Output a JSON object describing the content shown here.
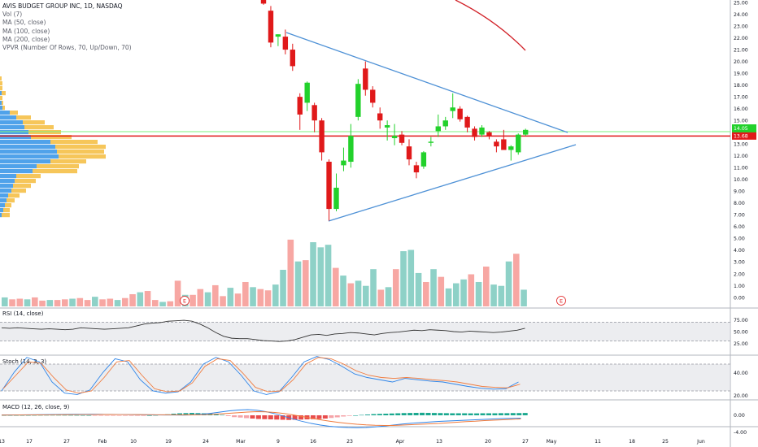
{
  "legend": {
    "title": "AVIS BUDGET GROUP INC, 1D, NASDAQ",
    "vol": "Vol (7)",
    "ma50": "MA (50, close)",
    "ma100": "MA (100, close)",
    "ma200": "MA (200, close)",
    "vpvr": "VPVR (Number Of Rows, 70, Up/Down, 70)"
  },
  "panels": {
    "rsi": "RSI (14, close)",
    "stoch": "Stoch (14, 3, 3)",
    "macd": "MACD (12, 26, close, 9)"
  },
  "colors": {
    "up": "#22d12b",
    "down": "#e0191a",
    "vol_up": "#8ed1c7",
    "vol_down": "#f7a7a3",
    "vpvr_up": "#3d98e8",
    "vpvr_down": "#f5c048",
    "trendline": "#4e91d6",
    "ma_red": "#d12027",
    "support": "#e0191a",
    "resist": "#7cf07c"
  },
  "chart_data": {
    "type": "candlestick",
    "price_axis": [
      "25.00",
      "24.00",
      "23.00",
      "22.00",
      "21.00",
      "20.00",
      "19.00",
      "18.00",
      "17.00",
      "16.00",
      "15.00",
      "14.00",
      "13.00",
      "12.00",
      "11.00",
      "10.00",
      "9.00",
      "8.00",
      "7.00",
      "6.00",
      "5.00",
      "4.00",
      "3.00",
      "2.00",
      "1.00",
      "0.00"
    ],
    "price_labels": {
      "last": "14.05",
      "current": "14.05",
      "support": "13.68"
    },
    "support_level": 13.68,
    "resistance_level": 14.05,
    "rsi_axis": [
      "75.00",
      "50.00",
      "25.00"
    ],
    "stoch_axis": [
      "40.00",
      "20.00"
    ],
    "macd_axis": [
      "0.00",
      "-4.00"
    ],
    "date_axis": [
      "13",
      "17",
      "27",
      "Feb",
      "10",
      "19",
      "24",
      "Mar",
      "9",
      "16",
      "23",
      "Apr",
      "13",
      "20",
      "27",
      "May",
      "11",
      "18",
      "25",
      "Jun"
    ],
    "earnings_marker": "E",
    "candles": [
      {
        "o": 25.3,
        "h": 25.6,
        "l": 24.8,
        "c": 24.9
      },
      {
        "o": 24.3,
        "h": 24.7,
        "l": 21.2,
        "c": 21.6
      },
      {
        "o": 22.1,
        "h": 22.3,
        "l": 21.3,
        "c": 22.3
      },
      {
        "o": 22.1,
        "h": 22.7,
        "l": 20.6,
        "c": 21.0
      },
      {
        "o": 21.0,
        "h": 21.5,
        "l": 19.2,
        "c": 19.6
      },
      {
        "o": 17.0,
        "h": 17.3,
        "l": 14.2,
        "c": 15.5
      },
      {
        "o": 16.5,
        "h": 18.3,
        "l": 15.8,
        "c": 18.2
      },
      {
        "o": 16.3,
        "h": 16.5,
        "l": 14.0,
        "c": 15.0
      },
      {
        "o": 15.0,
        "h": 15.2,
        "l": 11.6,
        "c": 12.3
      },
      {
        "o": 11.5,
        "h": 11.7,
        "l": 6.5,
        "c": 7.5
      },
      {
        "o": 7.5,
        "h": 10.5,
        "l": 7.3,
        "c": 9.3
      },
      {
        "o": 11.2,
        "h": 12.7,
        "l": 10.7,
        "c": 11.6
      },
      {
        "o": 11.5,
        "h": 14.7,
        "l": 11.0,
        "c": 13.7
      },
      {
        "o": 15.3,
        "h": 18.5,
        "l": 15.0,
        "c": 18.1
      },
      {
        "o": 19.4,
        "h": 20.0,
        "l": 17.1,
        "c": 17.6
      },
      {
        "o": 17.6,
        "h": 17.9,
        "l": 16.1,
        "c": 16.5
      },
      {
        "o": 15.6,
        "h": 16.1,
        "l": 14.3,
        "c": 15.0
      },
      {
        "o": 14.4,
        "h": 15.0,
        "l": 13.3,
        "c": 14.6
      },
      {
        "o": 13.5,
        "h": 14.7,
        "l": 12.9,
        "c": 13.7
      },
      {
        "o": 13.8,
        "h": 14.1,
        "l": 12.9,
        "c": 13.1
      },
      {
        "o": 12.8,
        "h": 13.4,
        "l": 11.2,
        "c": 11.7
      },
      {
        "o": 11.2,
        "h": 11.5,
        "l": 10.1,
        "c": 10.6
      },
      {
        "o": 11.1,
        "h": 12.4,
        "l": 10.9,
        "c": 12.3
      },
      {
        "o": 13.1,
        "h": 13.6,
        "l": 12.8,
        "c": 13.2
      },
      {
        "o": 14.1,
        "h": 15.5,
        "l": 13.6,
        "c": 14.5
      },
      {
        "o": 14.5,
        "h": 15.3,
        "l": 14.2,
        "c": 15.0
      },
      {
        "o": 15.8,
        "h": 17.3,
        "l": 15.2,
        "c": 16.1
      },
      {
        "o": 16.0,
        "h": 16.2,
        "l": 14.9,
        "c": 15.1
      },
      {
        "o": 15.3,
        "h": 15.4,
        "l": 14.0,
        "c": 14.4
      },
      {
        "o": 14.3,
        "h": 14.5,
        "l": 13.3,
        "c": 13.6
      },
      {
        "o": 13.8,
        "h": 14.6,
        "l": 13.6,
        "c": 14.4
      },
      {
        "o": 14.0,
        "h": 14.1,
        "l": 13.4,
        "c": 13.7
      },
      {
        "o": 13.2,
        "h": 13.4,
        "l": 12.3,
        "c": 12.8
      },
      {
        "o": 13.4,
        "h": 14.2,
        "l": 12.5,
        "c": 12.5
      },
      {
        "o": 12.5,
        "h": 12.9,
        "l": 11.6,
        "c": 12.8
      },
      {
        "o": 12.3,
        "h": 13.9,
        "l": 12.1,
        "c": 13.8
      },
      {
        "o": 13.8,
        "h": 14.3,
        "l": 13.7,
        "c": 14.2
      }
    ],
    "volume": [
      0.7,
      0.55,
      0.6,
      0.55,
      0.7,
      0.45,
      0.5,
      0.5,
      0.55,
      0.6,
      0.65,
      0.5,
      0.75,
      0.55,
      0.6,
      0.5,
      0.65,
      0.95,
      1.1,
      1.2,
      0.5,
      0.35,
      0.4,
      2.0,
      0.9,
      0.9,
      1.35,
      1.1,
      1.65,
      0.8,
      1.45,
      1.0,
      1.9,
      1.5,
      1.35,
      1.25,
      1.7,
      2.85,
      5.2,
      3.5,
      3.6,
      5.0,
      4.6,
      4.8,
      3.0,
      2.4,
      1.8,
      2.0,
      1.6,
      2.9,
      1.3,
      1.5,
      2.9,
      4.3,
      4.4,
      2.6,
      1.9,
      2.9,
      2.3,
      1.4,
      1.8,
      2.1,
      2.5,
      1.9,
      3.1,
      1.7,
      1.6,
      3.5,
      4.1,
      1.3
    ],
    "rsi": [
      58,
      57,
      58,
      57,
      56,
      55,
      56,
      55,
      54,
      55,
      58,
      57,
      56,
      55,
      56,
      57,
      58,
      62,
      66,
      68,
      69,
      72,
      73,
      74,
      72,
      66,
      58,
      48,
      40,
      36,
      35,
      35,
      33,
      31,
      30,
      29,
      30,
      33,
      38,
      43,
      44,
      42,
      45,
      46,
      48,
      47,
      45,
      43,
      46,
      48,
      49,
      51,
      53,
      52,
      54,
      53,
      52,
      50,
      49,
      51,
      50,
      49,
      48,
      49,
      51,
      53,
      57
    ],
    "stoch_k": [
      20,
      62,
      95,
      85,
      40,
      15,
      12,
      22,
      60,
      92,
      85,
      45,
      20,
      15,
      18,
      40,
      80,
      95,
      85,
      55,
      20,
      12,
      18,
      50,
      85,
      97,
      90,
      75,
      58,
      50,
      45,
      40,
      48,
      45,
      42,
      40,
      35,
      30,
      26,
      24,
      25,
      40
    ],
    "stoch_d": [
      25,
      55,
      85,
      82,
      50,
      22,
      15,
      20,
      50,
      85,
      88,
      55,
      25,
      18,
      20,
      38,
      75,
      92,
      88,
      60,
      28,
      18,
      20,
      45,
      80,
      95,
      92,
      80,
      65,
      55,
      50,
      48,
      50,
      48,
      45,
      43,
      40,
      35,
      30,
      28,
      27,
      35
    ],
    "macd_hist": [
      0.05,
      0.05,
      0.06,
      0.07,
      0.08,
      0.1,
      0.12,
      0.14,
      0.15,
      0.14,
      0.12,
      0.1,
      0.08,
      0.05,
      0.02,
      -0.02,
      -0.05,
      -0.08,
      -0.1,
      -0.12,
      -0.13,
      -0.1,
      -0.06,
      -0.03,
      0.0,
      0.1,
      0.3,
      0.5,
      0.8,
      1.0,
      1.1,
      1.2,
      1.1,
      1.0,
      0.9,
      0.6,
      0.2,
      -0.4,
      -0.9,
      -1.1,
      -1.4,
      -1.6,
      -1.8,
      -1.9,
      -2.0,
      -2.1,
      -2.2,
      -2.3,
      -2.2,
      -2.1,
      -2.0,
      -1.9,
      -1.8,
      -1.6,
      -1.3,
      -1.0,
      -0.6,
      -0.3,
      0.0,
      0.2,
      0.4,
      0.6,
      0.7,
      0.8,
      0.9,
      1.0,
      1.1,
      1.15,
      1.2,
      1.25,
      1.2,
      1.15,
      1.1,
      1.05,
      1.0,
      1.0,
      1.0,
      0.95,
      0.95,
      1.0,
      1.0,
      1.0,
      1.05,
      1.05,
      1.1,
      1.1,
      1.15
    ],
    "macd_line": [
      0.2,
      0.2,
      0.22,
      0.25,
      0.3,
      0.35,
      0.4,
      0.45,
      0.5,
      0.52,
      0.55,
      0.5,
      0.45,
      0.4,
      0.35,
      0.3,
      0.25,
      0.2,
      0.15,
      0.12,
      0.1,
      0.2,
      0.5,
      1.0,
      1.6,
      2.2,
      2.6,
      2.8,
      2.5,
      1.8,
      0.8,
      -0.5,
      -1.8,
      -3.0,
      -4.0,
      -4.8,
      -5.4,
      -5.8,
      -6.0,
      -6.1,
      -6.0,
      -5.7,
      -5.3,
      -4.8,
      -4.3,
      -3.9,
      -3.6,
      -3.3,
      -3.0,
      -2.8,
      -2.6,
      -2.4,
      -2.2,
      -2.0,
      -1.8,
      -1.6,
      -1.5,
      -1.4
    ],
    "signal_line": [
      0.1,
      0.12,
      0.15,
      0.18,
      0.2,
      0.23,
      0.26,
      0.3,
      0.33,
      0.36,
      0.38,
      0.4,
      0.4,
      0.39,
      0.37,
      0.35,
      0.32,
      0.28,
      0.25,
      0.22,
      0.2,
      0.2,
      0.28,
      0.45,
      0.7,
      1.0,
      1.3,
      1.6,
      1.8,
      1.7,
      1.4,
      0.9,
      0.2,
      -0.6,
      -1.4,
      -2.2,
      -2.9,
      -3.5,
      -4.0,
      -4.4,
      -4.7,
      -4.9,
      -5.0,
      -5.0,
      -4.8,
      -4.6,
      -4.4,
      -4.2,
      -4.0,
      -3.7,
      -3.4,
      -3.1,
      -2.9,
      -2.6,
      -2.4,
      -2.2,
      -2.0,
      -1.8
    ],
    "vpvr": [
      {
        "up": 0,
        "down": 2
      },
      {
        "up": 0,
        "down": 3
      },
      {
        "up": 0,
        "down": 3
      },
      {
        "up": 2,
        "down": 5
      },
      {
        "up": 0,
        "down": 3
      },
      {
        "up": 2,
        "down": 2
      },
      {
        "up": 3,
        "down": 3
      },
      {
        "up": 12,
        "down": 10
      },
      {
        "up": 20,
        "down": 18
      },
      {
        "up": 28,
        "down": 27
      },
      {
        "up": 30,
        "down": 36
      },
      {
        "up": 35,
        "down": 40
      },
      {
        "up": 38,
        "down": 50
      },
      {
        "up": 62,
        "down": 58
      },
      {
        "up": 68,
        "down": 62
      },
      {
        "up": 70,
        "down": 58
      },
      {
        "up": 72,
        "down": 58
      },
      {
        "up": 62,
        "down": 44
      },
      {
        "up": 45,
        "down": 52
      },
      {
        "up": 40,
        "down": 55
      },
      {
        "up": 20,
        "down": 30
      },
      {
        "up": 18,
        "down": 26
      },
      {
        "up": 16,
        "down": 22
      },
      {
        "up": 14,
        "down": 18
      },
      {
        "up": 10,
        "down": 14
      },
      {
        "up": 8,
        "down": 10
      },
      {
        "up": 6,
        "down": 8
      },
      {
        "up": 4,
        "down": 8
      },
      {
        "up": 2,
        "down": 10
      }
    ]
  }
}
